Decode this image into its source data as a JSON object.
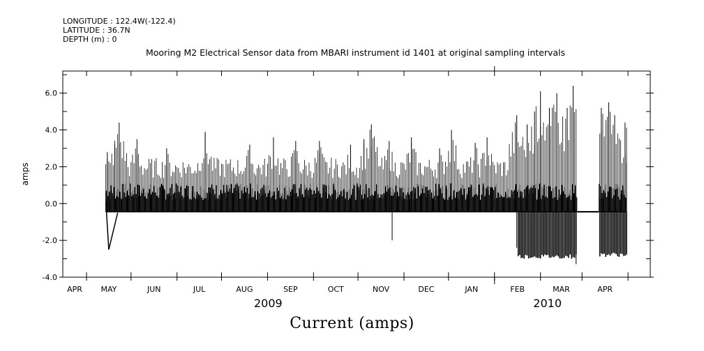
{
  "header": {
    "longitude": "LONGITUDE : 122.4W(-122.4)",
    "latitude": "LATITUDE : 36.7N",
    "depth": "DEPTH (m) : 0",
    "title": "Mooring M2 Electrical Sensor data from MBARI instrument id 1401 at original sampling intervals"
  },
  "caption": "Current (amps)",
  "chart_data": {
    "type": "line",
    "title": "Mooring M2 Electrical Sensor data from MBARI instrument id 1401 at original sampling intervals",
    "xlabel": "",
    "ylabel": "amps",
    "xlim": [
      "2009-03-16",
      "2010-04-16"
    ],
    "ylim": [
      -4.0,
      7.2
    ],
    "y_ticks": [
      "-4.0",
      "-2.0",
      "0.0",
      "2.0",
      "4.0",
      "6.0"
    ],
    "month_ticks": [
      "APR",
      "MAY",
      "JUN",
      "JUL",
      "AUG",
      "SEP",
      "OCT",
      "NOV",
      "DEC",
      "JAN",
      "FEB",
      "MAR",
      "APR"
    ],
    "year_labels": [
      "2009",
      "2010"
    ],
    "grid": false,
    "series": [
      {
        "color": "#000000",
        "baseline": -0.45,
        "segments": [
          {
            "x": [
              "2009-04-14",
              "2009-04-16"
            ],
            "y": [
              0.1,
              -2.5
            ]
          },
          {
            "x": [
              "2009-04-16",
              "2009-04-22"
            ],
            "y": [
              -2.5,
              -0.5
            ]
          }
        ],
        "spikes": [
          {
            "x": "2009-04-15",
            "y": 2.8
          },
          {
            "x": "2009-04-20",
            "y": 3.2
          },
          {
            "x": "2009-04-23",
            "y": 4.4
          },
          {
            "x": "2009-05-05",
            "y": 3.5
          },
          {
            "x": "2009-05-25",
            "y": 3.0
          },
          {
            "x": "2009-06-20",
            "y": 3.9
          },
          {
            "x": "2009-07-20",
            "y": 3.2
          },
          {
            "x": "2009-08-05",
            "y": 3.6
          },
          {
            "x": "2009-08-20",
            "y": 3.4
          },
          {
            "x": "2009-09-05",
            "y": 3.4
          },
          {
            "x": "2009-09-26",
            "y": 3.2
          },
          {
            "x": "2009-10-05",
            "y": 3.5
          },
          {
            "x": "2009-10-10",
            "y": 4.3
          },
          {
            "x": "2009-10-22",
            "y": 3.4
          },
          {
            "x": "2009-11-06",
            "y": 3.6
          },
          {
            "x": "2009-11-25",
            "y": 3.0
          },
          {
            "x": "2009-12-03",
            "y": 4.0
          },
          {
            "x": "2009-12-19",
            "y": 3.3
          },
          {
            "x": "2009-12-27",
            "y": 3.6
          },
          {
            "x": "2010-01-16",
            "y": 4.8
          },
          {
            "x": "2010-01-23",
            "y": 4.3
          },
          {
            "x": "2010-01-28",
            "y": 5.0
          },
          {
            "x": "2010-02-01",
            "y": 6.1
          },
          {
            "x": "2010-02-07",
            "y": 5.2
          },
          {
            "x": "2010-02-12",
            "y": 6.0
          },
          {
            "x": "2010-02-19",
            "y": 5.2
          },
          {
            "x": "2010-02-23",
            "y": 6.4
          },
          {
            "x": "2010-03-14",
            "y": 5.2
          },
          {
            "x": "2010-03-19",
            "y": 5.5
          },
          {
            "x": "2010-03-23",
            "y": 4.8
          },
          {
            "x": "2010-03-30",
            "y": 4.4
          }
        ],
        "dips": [
          {
            "x": "2009-10-24",
            "y": -2.0
          },
          {
            "x": "2010-01-16",
            "y": -2.4
          },
          {
            "x": "2010-02-25",
            "y": -3.3
          }
        ],
        "negative_bands": [
          {
            "x": [
              "2010-01-17",
              "2010-02-25"
            ],
            "y": -3.0
          },
          {
            "x": [
              "2010-03-13",
              "2010-03-31"
            ],
            "y": -2.9
          }
        ],
        "quiet_periods": [
          {
            "x": [
              "2010-02-26",
              "2010-03-12"
            ]
          }
        ],
        "data_range": [
          "2009-04-14",
          "2010-03-31"
        ]
      }
    ]
  }
}
